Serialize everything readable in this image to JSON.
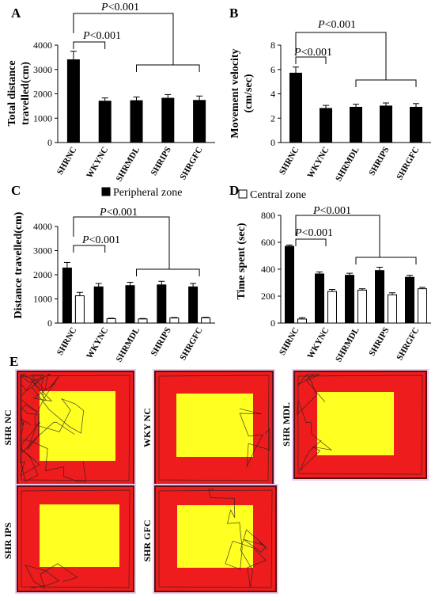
{
  "colors": {
    "arena_outer": "#ee1c1c",
    "arena_inner": "#ffff22",
    "frame": "#f0c8f0",
    "bar_dark": "#000000",
    "bar_light": "#ffffff"
  },
  "panel_E_label": "E",
  "chart_data": [
    {
      "panel": "A",
      "type": "bar",
      "categories": [
        "SHRNC",
        "WKYNC",
        "SHRMDL",
        "SHRIPS",
        "SHRGFC"
      ],
      "series": [
        {
          "values": [
            3400,
            1700,
            1720,
            1820,
            1730
          ],
          "errors": [
            350,
            130,
            150,
            150,
            180
          ]
        }
      ],
      "ylabel": "Total distance travelled(cm)",
      "ylim": [
        0,
        4000
      ],
      "yticks": [
        "0",
        "1000",
        "2000",
        "3000",
        "4000"
      ],
      "annotations": [
        "P<0.001",
        "P<0.001"
      ]
    },
    {
      "panel": "B",
      "type": "bar",
      "categories": [
        "SHRNC",
        "WKYNC",
        "SHRMDL",
        "SHRIPS",
        "SHRGFC"
      ],
      "series": [
        {
          "values": [
            5.7,
            2.8,
            2.9,
            3.0,
            2.9
          ],
          "errors": [
            0.5,
            0.25,
            0.25,
            0.25,
            0.3
          ]
        }
      ],
      "ylabel": "Movement velocity (cm/sec)",
      "ylim": [
        0,
        8
      ],
      "yticks": [
        "0",
        "2",
        "4",
        "6",
        "8"
      ],
      "annotations": [
        "P<0.001",
        "P<0.001"
      ]
    },
    {
      "panel": "C",
      "type": "bar",
      "categories": [
        "SHRNC",
        "WKYNC",
        "SHRMDL",
        "SHRIPS",
        "SHRGFC"
      ],
      "series": [
        {
          "name": "Peripheral zone",
          "values": [
            2280,
            1500,
            1550,
            1580,
            1500
          ],
          "errors": [
            230,
            140,
            140,
            150,
            140
          ]
        },
        {
          "values": [
            1130,
            180,
            170,
            210,
            220
          ],
          "errors": [
            140,
            20,
            20,
            20,
            20
          ]
        }
      ],
      "ylabel": "Distance travelled(cm)",
      "ylim": [
        0,
        4000
      ],
      "yticks": [
        "0",
        "1000",
        "2000",
        "3000",
        "4000"
      ],
      "annotations": [
        "P<0.001",
        "P<0.001"
      ]
    },
    {
      "panel": "D",
      "type": "bar",
      "categories": [
        "SHRNC",
        "WKYNC",
        "SHRMDL",
        "SHRIPS",
        "SHRGFC"
      ],
      "series": [
        {
          "values": [
            570,
            365,
            355,
            390,
            340
          ],
          "errors": [
            10,
            15,
            15,
            25,
            15
          ]
        },
        {
          "name": "Central zone",
          "values": [
            30,
            235,
            245,
            210,
            255
          ],
          "errors": [
            10,
            15,
            10,
            15,
            10
          ]
        }
      ],
      "ylabel": "Time spent (sec)",
      "ylim": [
        0,
        800
      ],
      "yticks": [
        "0",
        "200",
        "400",
        "600",
        "800"
      ],
      "annotations": [
        "P<0.001",
        "P<0.001"
      ]
    }
  ],
  "tracks": [
    {
      "label": "SHR NC",
      "density": 90
    },
    {
      "label": "WKY NC",
      "density": 12
    },
    {
      "label": "SHR MDL",
      "density": 22
    },
    {
      "label": "SHR IPS",
      "density": 10
    },
    {
      "label": "SHR GFC",
      "density": 26
    }
  ]
}
